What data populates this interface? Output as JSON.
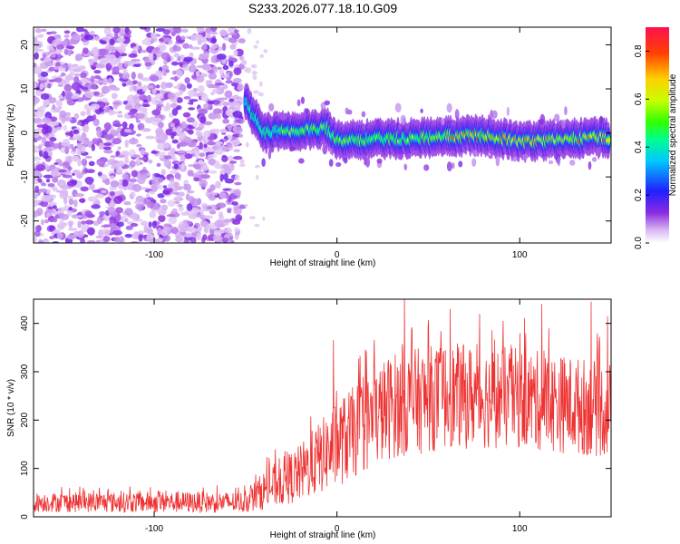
{
  "figure_title": "S233.2026.077.18.10.G09",
  "chart_data": [
    {
      "type": "heatmap",
      "title": "S233.2026.077.18.10.G09",
      "xlabel": "Height of straight line (km)",
      "ylabel": "Frequency (Hz)",
      "xlim": [
        -166,
        150
      ],
      "ylim": [
        -25,
        24
      ],
      "xticks": [
        -100,
        0,
        100
      ],
      "yticks": [
        -20,
        -10,
        0,
        10,
        20
      ],
      "colorbar": {
        "label": "Normalized spectral amplitude",
        "range": [
          0.0,
          0.9
        ],
        "ticks": [
          0.0,
          0.2,
          0.4,
          0.6,
          0.8
        ]
      },
      "features": {
        "noise_region_x": [
          -166,
          -52
        ],
        "signal_track": [
          {
            "x": -50,
            "freq": 7
          },
          {
            "x": -40,
            "freq": 0
          },
          {
            "x": -20,
            "freq": 0.5
          },
          {
            "x": -5,
            "freq": 1
          },
          {
            "x": 0,
            "freq": -1.5
          },
          {
            "x": 20,
            "freq": -1.5
          },
          {
            "x": 50,
            "freq": -1
          },
          {
            "x": 80,
            "freq": -0.5
          },
          {
            "x": 100,
            "freq": -2
          },
          {
            "x": 120,
            "freq": -1.5
          },
          {
            "x": 145,
            "freq": -1
          }
        ],
        "peak_amplitude_region_x": [
          60,
          145
        ]
      }
    },
    {
      "type": "line",
      "xlabel": "Height of straight line (km)",
      "ylabel": "SNR (10 * v/v)",
      "xlim": [
        -166,
        150
      ],
      "ylim": [
        0,
        450
      ],
      "xticks": [
        -100,
        0,
        100
      ],
      "yticks": [
        0,
        100,
        200,
        300,
        400
      ],
      "series": [
        {
          "name": "SNR",
          "color": "#ee3333",
          "envelope": [
            {
              "x": -166,
              "mean": 30,
              "spread": 20
            },
            {
              "x": -100,
              "mean": 30,
              "spread": 22
            },
            {
              "x": -50,
              "mean": 30,
              "spread": 22
            },
            {
              "x": -40,
              "mean": 55,
              "spread": 40
            },
            {
              "x": -20,
              "mean": 90,
              "spread": 60
            },
            {
              "x": 0,
              "mean": 150,
              "spread": 90
            },
            {
              "x": 30,
              "mean": 230,
              "spread": 110
            },
            {
              "x": 60,
              "mean": 250,
              "spread": 110
            },
            {
              "x": 100,
              "mean": 245,
              "spread": 105
            },
            {
              "x": 150,
              "mean": 220,
              "spread": 100
            }
          ],
          "peaks": [
            {
              "x": -2,
              "y": 365
            },
            {
              "x": 37,
              "y": 450
            },
            {
              "x": 62,
              "y": 430
            },
            {
              "x": 112,
              "y": 440
            },
            {
              "x": 139,
              "y": 445
            },
            {
              "x": 148,
              "y": 415
            }
          ]
        }
      ]
    }
  ]
}
